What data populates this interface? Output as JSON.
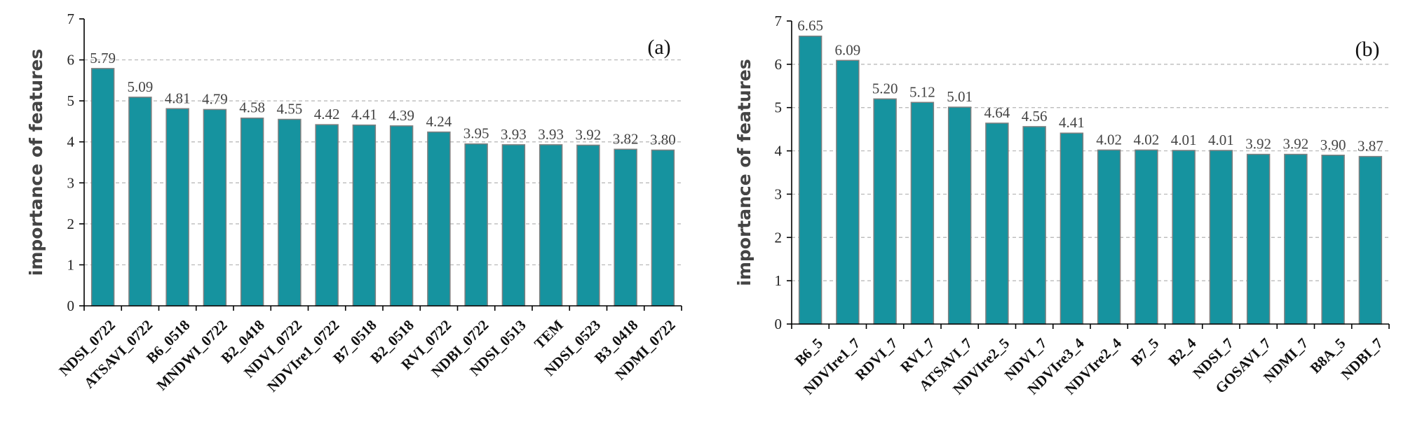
{
  "chart_data": [
    {
      "type": "bar",
      "panel_label": "(a)",
      "ylabel": "importance of features",
      "xlabel": "",
      "ylim": [
        0,
        7
      ],
      "yticks": [
        "0",
        "1",
        "2",
        "3",
        "4",
        "5",
        "6",
        "7"
      ],
      "grid": "horizontal dashed",
      "categories": [
        "NDSI_0722",
        "ATSAVI_0722",
        "B6_0518",
        "MNDWI_0722",
        "B2_0418",
        "NDVI_0722",
        "NDVIre1_0722",
        "B7_0518",
        "B2_0518",
        "RVI_0722",
        "NDBI_0722",
        "NDSI_0513",
        "TEM",
        "NDSI_0523",
        "B3_0418",
        "NDMI_0722"
      ],
      "values": [
        5.79,
        5.09,
        4.81,
        4.79,
        4.58,
        4.55,
        4.42,
        4.41,
        4.39,
        4.24,
        3.95,
        3.93,
        3.93,
        3.92,
        3.82,
        3.8
      ],
      "value_labels": [
        "5.79",
        "5.09",
        "4.81",
        "4.79",
        "4.58",
        "4.55",
        "4.42",
        "4.41",
        "4.39",
        "4.24",
        "3.95",
        "3.93",
        "3.93",
        "3.92",
        "3.82",
        "3.80"
      ]
    },
    {
      "type": "bar",
      "panel_label": "(b)",
      "ylabel": "importance of features",
      "xlabel": "",
      "ylim": [
        0,
        7
      ],
      "yticks": [
        "0",
        "1",
        "2",
        "3",
        "4",
        "5",
        "6",
        "7"
      ],
      "grid": "horizontal dashed",
      "categories": [
        "B6_5",
        "NDVIre1_7",
        "RDVI_7",
        "RVI_7",
        "ATSAVI_7",
        "NDVIre2_5",
        "NDVI_7",
        "NDVIre3_4",
        "NDVIre2_4",
        "B7_5",
        "B2_4",
        "NDSI_7",
        "GOSAVI_7",
        "NDMI_7",
        "B8A_5",
        "NDBI_7"
      ],
      "values": [
        6.65,
        6.09,
        5.2,
        5.12,
        5.01,
        4.64,
        4.56,
        4.41,
        4.02,
        4.02,
        4.01,
        4.01,
        3.92,
        3.92,
        3.9,
        3.87
      ],
      "value_labels": [
        "6.65",
        "6.09",
        "5.20",
        "5.12",
        "5.01",
        "4.64",
        "4.56",
        "4.41",
        "4.02",
        "4.02",
        "4.01",
        "4.01",
        "3.92",
        "3.92",
        "3.90",
        "3.87"
      ]
    }
  ],
  "colors": {
    "bar_fill": "#16939f",
    "bar_edge": "#7f7f7f",
    "grid": "#b4b4b4"
  }
}
